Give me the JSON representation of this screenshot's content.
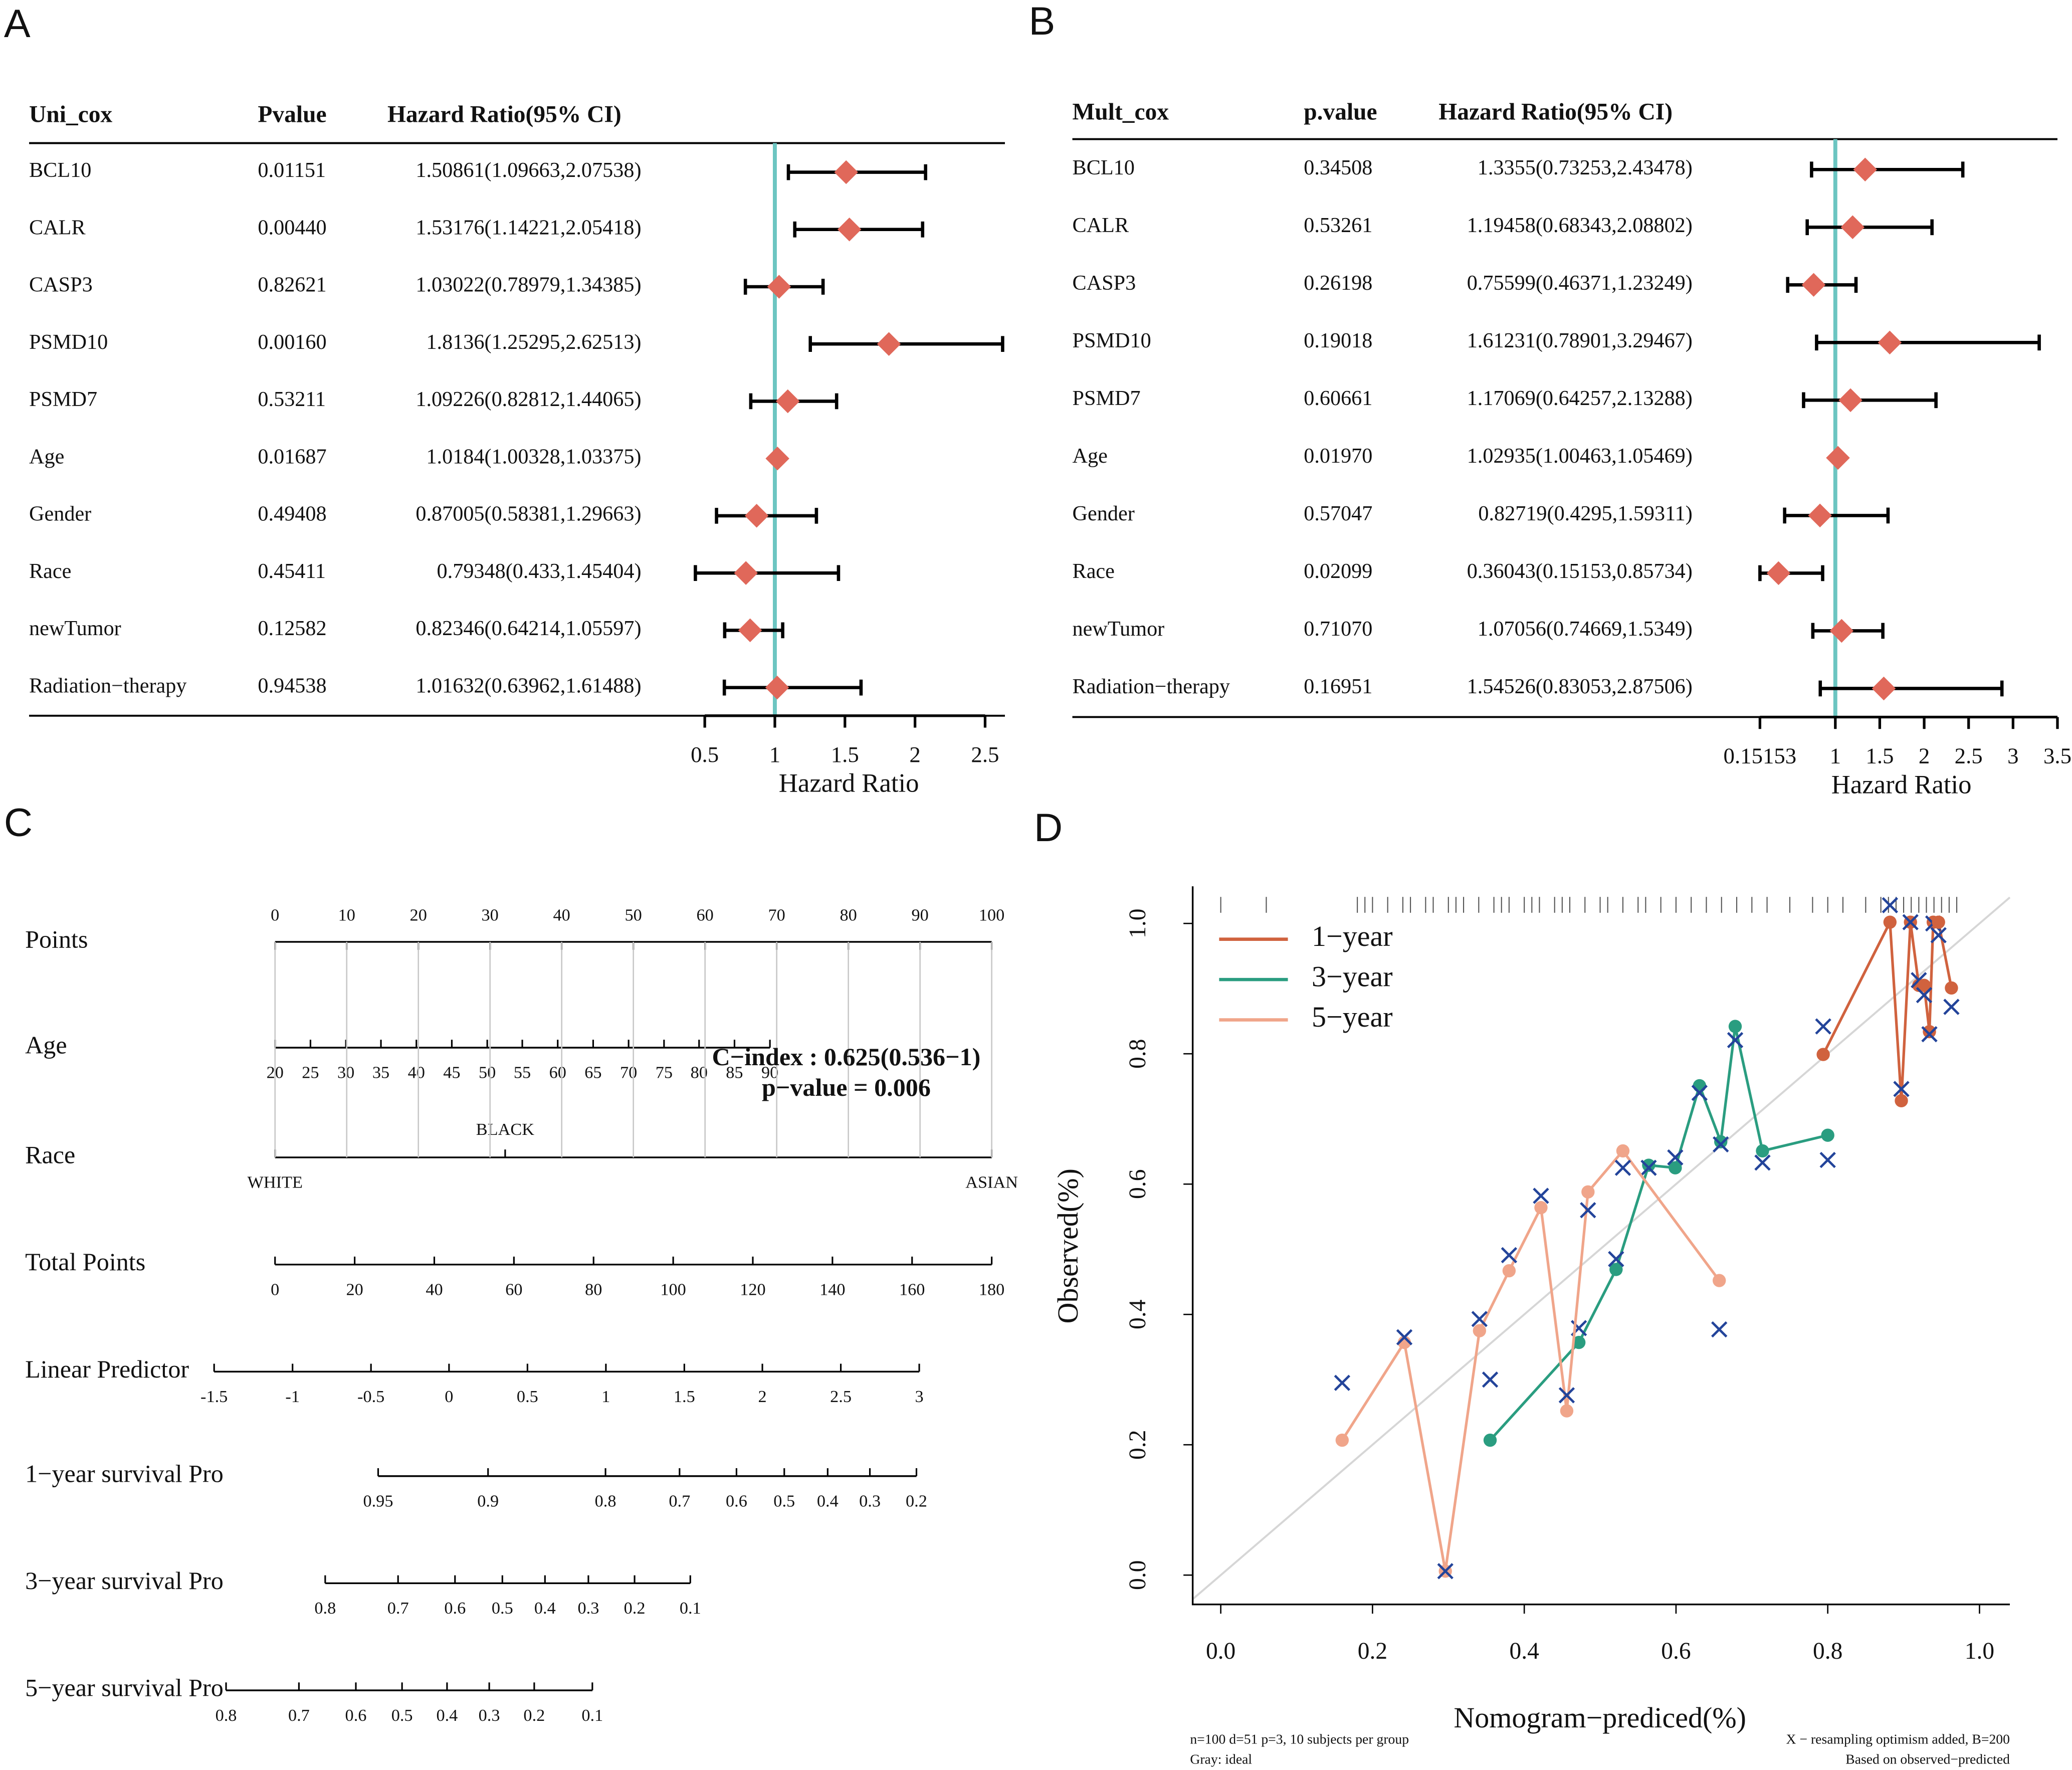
{
  "chart_data": [
    {
      "type": "forest",
      "panel": "A",
      "columns": [
        "Uni_cox",
        "Pvalue",
        "Hazard Ratio(95% CI)"
      ],
      "categories": [
        "BCL10",
        "CALR",
        "CASP3",
        "PSMD10",
        "PSMD7",
        "Age",
        "Gender",
        "Race",
        "newTumor",
        "Radiation−therapy"
      ],
      "p_values": [
        "0.01151",
        "0.00440",
        "0.82621",
        "0.00160",
        "0.53211",
        "0.01687",
        "0.49408",
        "0.45411",
        "0.12582",
        "0.94538"
      ],
      "values": [
        1.50861,
        1.53176,
        1.03022,
        1.8136,
        1.09226,
        1.0184,
        0.87005,
        0.79348,
        0.82346,
        1.01632
      ],
      "lower": [
        1.09663,
        1.14221,
        0.78979,
        1.25295,
        0.82812,
        1.00328,
        0.58381,
        0.433,
        0.64214,
        0.63962
      ],
      "upper": [
        2.07538,
        2.05418,
        1.34385,
        2.62513,
        1.44065,
        1.03375,
        1.29663,
        1.45404,
        1.05597,
        1.61488
      ],
      "value_labels": [
        "1.50861(1.09663,2.07538)",
        "1.53176(1.14221,2.05418)",
        "1.03022(0.78979,1.34385)",
        "1.8136(1.25295,2.62513)",
        "1.09226(0.82812,1.44065)",
        "1.0184(1.00328,1.03375)",
        "0.87005(0.58381,1.29663)",
        "0.79348(0.433,1.45404)",
        "0.82346(0.64214,1.05597)",
        "1.01632(0.63962,1.61488)"
      ],
      "color": "#e0685a",
      "ref": 1,
      "ref_color": "#6cc5c1",
      "xlim": [
        0.5,
        2.5
      ],
      "xticks": [
        0.5,
        1,
        1.5,
        2,
        2.5
      ],
      "xlabel": "Hazard Ratio"
    },
    {
      "type": "forest",
      "panel": "B",
      "columns": [
        "Mult_cox",
        "p.value",
        "Hazard Ratio(95% CI)"
      ],
      "categories": [
        "BCL10",
        "CALR",
        "CASP3",
        "PSMD10",
        "PSMD7",
        "Age",
        "Gender",
        "Race",
        "newTumor",
        "Radiation−therapy"
      ],
      "p_values": [
        "0.34508",
        "0.53261",
        "0.26198",
        "0.19018",
        "0.60661",
        "0.01970",
        "0.57047",
        "0.02099",
        "0.71070",
        "0.16951"
      ],
      "values": [
        1.3355,
        1.19458,
        0.75599,
        1.61231,
        1.17069,
        1.02935,
        0.82719,
        0.36043,
        1.07056,
        1.54526
      ],
      "lower": [
        0.73253,
        0.68343,
        0.46371,
        0.78901,
        0.64257,
        1.00463,
        0.4295,
        0.15153,
        0.74669,
        0.83053
      ],
      "upper": [
        2.43478,
        2.08802,
        1.23249,
        3.29467,
        2.13288,
        1.05469,
        1.59311,
        0.85734,
        1.5349,
        2.87506
      ],
      "value_labels": [
        "1.3355(0.73253,2.43478)",
        "1.19458(0.68343,2.08802)",
        "0.75599(0.46371,1.23249)",
        "1.61231(0.78901,3.29467)",
        "1.17069(0.64257,2.13288)",
        "1.02935(1.00463,1.05469)",
        "0.82719(0.4295,1.59311)",
        "0.36043(0.15153,0.85734)",
        "1.07056(0.74669,1.5349)",
        "1.54526(0.83053,2.87506)"
      ],
      "color": "#e0685a",
      "ref": 1,
      "ref_color": "#6cc5c1",
      "xlim": [
        0.15153,
        3.5
      ],
      "xticks": [
        {
          "value": 0.15153,
          "label": "0.15153"
        },
        1,
        1.5,
        2,
        2.5,
        3,
        3.5
      ],
      "xlabel": "Hazard Ratio"
    },
    {
      "type": "nomogram",
      "panel": "C",
      "annotations": [
        "C−index : 0.625(0.536−1)",
        "p−value = 0.006"
      ],
      "annotation_color": "#e3222b",
      "scales": [
        {
          "name": "Points",
          "ticks": [
            0,
            10,
            20,
            30,
            40,
            50,
            60,
            70,
            80,
            90,
            100
          ],
          "xlim": [
            0,
            100
          ]
        },
        {
          "name": "Age",
          "ticks": [
            20,
            25,
            30,
            35,
            40,
            45,
            50,
            55,
            60,
            65,
            70,
            75,
            80,
            85,
            90
          ],
          "points": [
            0,
            8.9,
            17.8,
            26.6,
            35.5,
            44.4,
            53.3,
            62.1,
            71.0,
            79.9,
            88.8,
            97.7,
            106.5,
            115.4,
            124.3
          ]
        },
        {
          "name": "Race",
          "ticks": [
            "WHITE",
            "BLACK",
            "ASIAN"
          ],
          "points": [
            0,
            57.8,
            180
          ]
        },
        {
          "name": "Total Points",
          "ticks": [
            0,
            20,
            40,
            60,
            80,
            100,
            120,
            140,
            160,
            180
          ],
          "xlim": [
            0,
            180
          ]
        },
        {
          "name": "Linear Predictor",
          "ticks": [
            -1.5,
            -1,
            -0.5,
            0,
            0.5,
            1,
            1.5,
            2,
            2.5,
            3
          ],
          "points": [
            -15.3,
            4.4,
            24.1,
            43.7,
            63.4,
            83.1,
            102.8,
            122.4,
            142.1,
            161.8
          ]
        },
        {
          "name": "1−year survival Pro",
          "ticks": [
            0.95,
            0.9,
            0.8,
            0.7,
            0.6,
            0.5,
            0.4,
            0.3,
            0.2
          ],
          "points": [
            25.9,
            53.5,
            83.0,
            101.6,
            115.9,
            127.9,
            138.8,
            149.4,
            161.1
          ]
        },
        {
          "name": "3−year survival Pro",
          "ticks": [
            0.8,
            0.7,
            0.6,
            0.5,
            0.4,
            0.3,
            0.2,
            0.1
          ],
          "points": [
            12.6,
            30.9,
            45.2,
            57.1,
            67.8,
            78.7,
            90.3,
            104.3
          ]
        },
        {
          "name": "5−year survival Pro",
          "ticks": [
            0.8,
            0.7,
            0.6,
            0.5,
            0.4,
            0.3,
            0.2,
            0.1
          ],
          "points": [
            -12.3,
            6.0,
            20.3,
            31.9,
            43.2,
            53.8,
            65.1,
            79.7
          ]
        }
      ]
    },
    {
      "type": "calibration",
      "panel": "D",
      "xlabel": "Nomogram−prediced(%)",
      "ylabel": "Observed(%)",
      "xlim": [
        -0.037,
        1.04
      ],
      "ylim": [
        -0.045,
        1.057
      ],
      "xticks": [
        {
          "value": 0,
          "label": "0.0"
        },
        0.2,
        0.4,
        0.6,
        0.8,
        {
          "value": 1,
          "label": "1.0"
        }
      ],
      "yticks": [
        {
          "value": 0,
          "label": "0.0"
        },
        0.2,
        0.4,
        0.6,
        0.8,
        {
          "value": 1,
          "label": "1.0"
        }
      ],
      "ideal_color": "#d6d6d6",
      "resampled_color": "#23449a",
      "legend": "top-left",
      "series": [
        {
          "name": "1−year",
          "color": "#d0623e",
          "x": [
            0.794,
            0.882,
            0.897,
            0.909,
            0.92,
            0.927,
            0.934,
            0.939,
            0.946,
            0.963
          ],
          "values": [
            0.799,
            1.002,
            0.728,
            1.002,
            0.905,
            0.905,
            0.834,
            1.002,
            1.002,
            0.901
          ],
          "resampled": [
            0.842,
            1.028,
            0.746,
            1.002,
            0.913,
            0.89,
            0.83,
            1.0,
            0.982,
            0.872
          ]
        },
        {
          "name": "3−year",
          "color": "#2a9d80",
          "x": [
            0.355,
            0.472,
            0.521,
            0.564,
            0.599,
            0.631,
            0.659,
            0.678,
            0.714,
            0.8
          ],
          "values": [
            0.207,
            0.357,
            0.469,
            0.629,
            0.625,
            0.751,
            0.665,
            0.842,
            0.651,
            0.675
          ],
          "resampled": [
            0.3,
            0.379,
            0.485,
            0.625,
            0.641,
            0.74,
            0.661,
            0.821,
            0.633,
            0.637
          ]
        },
        {
          "name": "5−year",
          "color": "#f0a58a",
          "x": [
            0.16,
            0.242,
            0.296,
            0.341,
            0.38,
            0.422,
            0.456,
            0.484,
            0.53,
            0.657
          ],
          "values": [
            0.207,
            0.357,
            0.006,
            0.375,
            0.467,
            0.564,
            0.252,
            0.588,
            0.651,
            0.452
          ],
          "resampled": [
            0.295,
            0.365,
            0.006,
            0.393,
            0.491,
            0.582,
            0.276,
            0.56,
            0.625,
            0.377
          ]
        }
      ],
      "rug": [
        0.0,
        0.06,
        0.18,
        0.19,
        0.2,
        0.22,
        0.24,
        0.25,
        0.27,
        0.28,
        0.3,
        0.31,
        0.32,
        0.34,
        0.36,
        0.37,
        0.38,
        0.4,
        0.41,
        0.42,
        0.44,
        0.45,
        0.46,
        0.48,
        0.5,
        0.51,
        0.53,
        0.55,
        0.56,
        0.58,
        0.6,
        0.62,
        0.64,
        0.66,
        0.68,
        0.7,
        0.72,
        0.75,
        0.78,
        0.8,
        0.82,
        0.85,
        0.87,
        0.88,
        0.89,
        0.9,
        0.91,
        0.92,
        0.93,
        0.94,
        0.95,
        0.96,
        0.97
      ],
      "notes": [
        "n=100 d=51 p=3, 10 subjects per group",
        "Gray: ideal",
        "X − resampling optimism added, B=200",
        "Based on observed−predicted"
      ]
    }
  ]
}
